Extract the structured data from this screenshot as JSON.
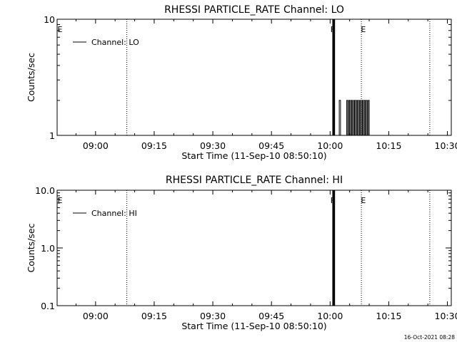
{
  "chart_data": [
    {
      "type": "line",
      "title": "RHESSI PARTICLE_RATE Channel: LO",
      "xlabel": "Start Time (11-Sep-10 08:50:10)",
      "ylabel": "Counts/sec",
      "xlim": [
        "08:50:10",
        "10:31:00"
      ],
      "ylim": [
        1,
        10
      ],
      "yscale": "log",
      "x_tick_labels": [
        "09:00",
        "09:15",
        "09:30",
        "09:45",
        "10:00",
        "10:15",
        "10:30"
      ],
      "x_tick_values": [
        "09:00",
        "09:15",
        "09:30",
        "09:45",
        "10:00",
        "10:15",
        "10:30"
      ],
      "y_tick_labels": [
        "1",
        "10"
      ],
      "y_tick_values": [
        1,
        10
      ],
      "legend": {
        "placement": "top-left",
        "entries": [
          "Channel: LO"
        ]
      },
      "series": [
        {
          "name": "Channel: LO",
          "x": [
            "10:00:30",
            "10:00:40",
            "10:00:50",
            "10:01:00",
            "10:01:10",
            "10:01:20",
            "10:02:00",
            "10:02:20",
            "10:02:40",
            "10:04:00",
            "10:04:15",
            "10:04:30",
            "10:04:45",
            "10:05:00",
            "10:05:15",
            "10:05:30",
            "10:05:45",
            "10:06:00",
            "10:06:15",
            "10:06:30",
            "10:06:45",
            "10:07:00",
            "10:07:15",
            "10:07:30",
            "10:07:45",
            "10:08:00",
            "10:08:15",
            "10:08:30",
            "10:08:45",
            "10:09:00",
            "10:09:15",
            "10:09:30",
            "10:09:45",
            "10:10:00"
          ],
          "values": [
            1,
            10,
            1,
            10,
            1,
            1,
            1,
            2,
            1,
            1,
            2,
            1,
            2,
            1,
            2,
            1,
            2,
            1,
            2,
            1,
            2,
            1,
            2,
            1,
            2,
            1,
            2,
            1,
            2,
            1,
            2,
            1,
            2,
            1
          ]
        }
      ],
      "annotations": [
        {
          "label": "E",
          "x": "08:50:10"
        },
        {
          "label": "F",
          "x": "10:00:40"
        },
        {
          "label": "E",
          "x": "10:08:30"
        }
      ],
      "vlines_dotted": [
        "09:08:00",
        "10:08:00",
        "10:25:30"
      ]
    },
    {
      "type": "line",
      "title": "RHESSI PARTICLE_RATE Channel: HI",
      "xlabel": "Start Time (11-Sep-10 08:50:10)",
      "ylabel": "Counts/sec",
      "xlim": [
        "08:50:10",
        "10:31:00"
      ],
      "ylim": [
        0.1,
        10
      ],
      "yscale": "log",
      "x_tick_labels": [
        "09:00",
        "09:15",
        "09:30",
        "09:45",
        "10:00",
        "10:15",
        "10:30"
      ],
      "x_tick_values": [
        "09:00",
        "09:15",
        "09:30",
        "09:45",
        "10:00",
        "10:15",
        "10:30"
      ],
      "y_tick_labels": [
        "0.1",
        "1.0",
        "10.0"
      ],
      "y_tick_values": [
        0.1,
        1,
        10
      ],
      "legend": {
        "placement": "top-left",
        "entries": [
          "Channel: HI"
        ]
      },
      "series": [
        {
          "name": "Channel: HI",
          "x": [
            "10:00:30",
            "10:00:40",
            "10:00:50",
            "10:01:00",
            "10:01:10",
            "10:01:20"
          ],
          "values": [
            0.1,
            10,
            0.1,
            10,
            0.1,
            0.1
          ]
        }
      ],
      "annotations": [
        {
          "label": "E",
          "x": "08:50:10"
        },
        {
          "label": "F",
          "x": "10:00:40"
        },
        {
          "label": "E",
          "x": "10:08:30"
        }
      ],
      "vlines_dotted": [
        "09:08:00",
        "10:08:00",
        "10:25:30"
      ]
    }
  ],
  "footer": {
    "timestamp": "16-Oct-2021 08:28"
  }
}
